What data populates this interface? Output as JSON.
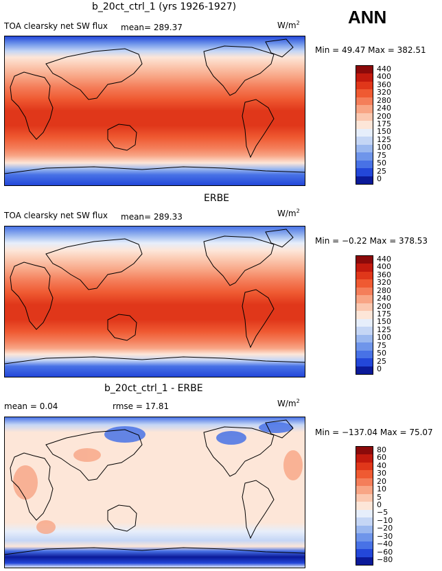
{
  "season_label": "ANN",
  "panels": [
    {
      "title": "b_20ct_ctrl_1 (yrs 1926-1927)",
      "variable": "TOA clearsky net SW flux",
      "mean_text": "mean= 289.37",
      "units": "W/m",
      "units_sup": "2",
      "minmax": "Min =   49.47 Max = 382.51",
      "colorbar_levels": [
        "440",
        "400",
        "360",
        "320",
        "280",
        "240",
        "200",
        "175",
        "150",
        "125",
        "100",
        "75",
        "50",
        "25",
        "0"
      ],
      "colorbar_colors": [
        "#8b0a0a",
        "#c21a0e",
        "#e0371a",
        "#ef5a32",
        "#f47e5a",
        "#f8a585",
        "#fbc8b0",
        "#fde6d8",
        "#e6eefb",
        "#c5d6f5",
        "#9bb8ef",
        "#6f95ea",
        "#4872e6",
        "#2347d9",
        "#0b1a99"
      ]
    },
    {
      "title": "ERBE",
      "variable": "TOA clearsky net SW flux",
      "mean_text": "mean= 289.33",
      "units": "W/m",
      "units_sup": "2",
      "minmax": "Min =  −0.22 Max = 378.53",
      "colorbar_levels": [
        "440",
        "400",
        "360",
        "320",
        "280",
        "240",
        "200",
        "175",
        "150",
        "125",
        "100",
        "75",
        "50",
        "25",
        "0"
      ],
      "colorbar_colors": [
        "#8b0a0a",
        "#c21a0e",
        "#e0371a",
        "#ef5a32",
        "#f47e5a",
        "#f8a585",
        "#fbc8b0",
        "#fde6d8",
        "#e6eefb",
        "#c5d6f5",
        "#9bb8ef",
        "#6f95ea",
        "#4872e6",
        "#2347d9",
        "#0b1a99"
      ]
    },
    {
      "title": "b_20ct_ctrl_1 - ERBE",
      "mean_text": "mean =    0.04",
      "rmse_text": "rmse =  17.81",
      "units": "W/m",
      "units_sup": "2",
      "minmax": "Min = −137.04 Max =  75.07",
      "colorbar_levels": [
        "80",
        "60",
        "40",
        "30",
        "20",
        "10",
        "5",
        "0",
        "−5",
        "−10",
        "−20",
        "−30",
        "−40",
        "−60",
        "−80"
      ],
      "colorbar_colors": [
        "#8b0a0a",
        "#c21a0e",
        "#e0371a",
        "#ef5a32",
        "#f47e5a",
        "#f8a585",
        "#fbc8b0",
        "#fde6d8",
        "#e6eefb",
        "#c5d6f5",
        "#9bb8ef",
        "#6f95ea",
        "#4872e6",
        "#2347d9",
        "#0b1a99"
      ]
    }
  ]
}
